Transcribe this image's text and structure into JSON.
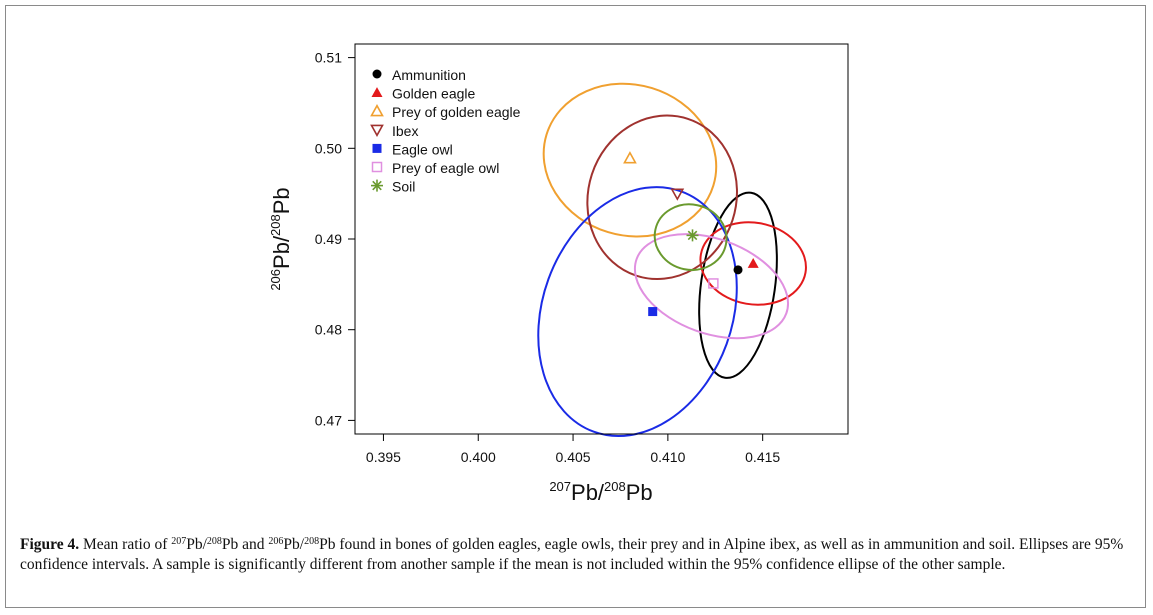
{
  "chart_data": {
    "type": "scatter",
    "xlim": [
      0.3935,
      0.4195
    ],
    "ylim": [
      0.4685,
      0.5115
    ],
    "x_ticks": [
      "0.395",
      "0.400",
      "0.405",
      "0.410",
      "0.415"
    ],
    "x_tick_values": [
      0.395,
      0.4,
      0.405,
      0.41,
      0.415
    ],
    "y_ticks": [
      "0.47",
      "0.48",
      "0.49",
      "0.50",
      "0.51"
    ],
    "y_tick_values": [
      0.47,
      0.48,
      0.49,
      0.5,
      0.51
    ],
    "xlabel": {
      "sup1": "207",
      "main1": "Pb/",
      "sup2": "208",
      "main2": "Pb"
    },
    "ylabel": {
      "sup1": "206",
      "main1": "Pb/",
      "sup2": "208",
      "main2": "Pb"
    },
    "legend_position": "top-left",
    "series": [
      {
        "name": "Ammunition",
        "marker": "filled-circle",
        "color": "#000000",
        "mean": [
          0.4137,
          0.4866
        ],
        "ellipse": {
          "cx": 0.4137,
          "cy": 0.4849,
          "rx": 0.00195,
          "ry": 0.0103,
          "tilt_deg": 8
        }
      },
      {
        "name": "Golden eagle",
        "marker": "filled-triangle",
        "color": "#e31a1c",
        "mean": [
          0.4145,
          0.4873
        ],
        "ellipse": {
          "cx": 0.4145,
          "cy": 0.4873,
          "rx": 0.0028,
          "ry": 0.0045,
          "tilt_deg": 10
        }
      },
      {
        "name": "Prey of golden eagle",
        "marker": "open-triangle",
        "color": "#f0a030",
        "mean": [
          0.408,
          0.4989
        ],
        "ellipse": {
          "cx": 0.408,
          "cy": 0.4987,
          "rx": 0.0046,
          "ry": 0.0083,
          "tilt_deg": 17
        }
      },
      {
        "name": "Ibex",
        "marker": "open-inverted-triangle",
        "color": "#a0322f",
        "mean": [
          0.4105,
          0.495
        ],
        "ellipse": {
          "cx": 0.4097,
          "cy": 0.4946,
          "rx": 0.0039,
          "ry": 0.0091,
          "tilt_deg": 18
        }
      },
      {
        "name": "Eagle owl",
        "marker": "filled-square",
        "color": "#1a2be6",
        "mean": [
          0.4092,
          0.482
        ],
        "ellipse": {
          "cx": 0.4084,
          "cy": 0.482,
          "rx": 0.005,
          "ry": 0.0141,
          "tilt_deg": 20
        }
      },
      {
        "name": "Prey of eagle owl",
        "marker": "open-square",
        "color": "#e090e0",
        "mean": [
          0.4124,
          0.4851
        ],
        "ellipse": {
          "cx": 0.4123,
          "cy": 0.4848,
          "rx": 0.0042,
          "ry": 0.0052,
          "tilt_deg": 20
        }
      },
      {
        "name": "Soil",
        "marker": "asterisk",
        "color": "#6a9a2e",
        "mean": [
          0.4113,
          0.4904
        ],
        "ellipse": {
          "cx": 0.4112,
          "cy": 0.4902,
          "rx": 0.0019,
          "ry": 0.0036,
          "tilt_deg": 12
        }
      }
    ]
  },
  "caption": {
    "label": "Figure 4.",
    "p1": " Mean ratio of ",
    "s1": "207",
    "p2": "Pb/",
    "s2": "208",
    "p3": "Pb and ",
    "s3": "206",
    "p4": "Pb/",
    "s4": "208",
    "p5": "Pb found in bones of golden eagles, eagle owls, their prey and in Alpine ibex, as well as in ammunition and soil. Ellipses are 95% confidence intervals. A sample is significantly different from another sample if the mean is not included within the 95% confidence ellipse of the other sample."
  }
}
